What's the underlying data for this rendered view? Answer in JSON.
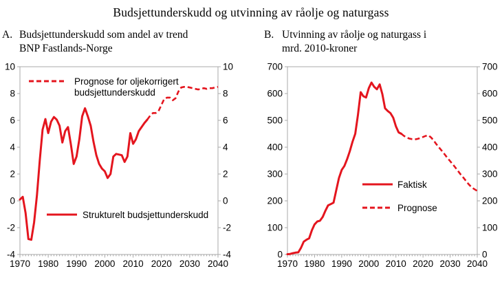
{
  "title": "Budsjettunderskudd og utvinning av råolje og naturgass",
  "colors": {
    "line_red": "#e4151e",
    "axis_gray": "#a8a8a8",
    "text_black": "#000000",
    "background": "#ffffff"
  },
  "chart_data": [
    {
      "type": "line",
      "panel_label": "A.",
      "title_lines": [
        "Budsjettunderskudd som andel av trend",
        "BNP Fastlands-Norge"
      ],
      "xlim": [
        1970,
        2040
      ],
      "ylim": [
        -4,
        10
      ],
      "xticks": [
        1970,
        1980,
        1990,
        2000,
        2010,
        2020,
        2030,
        2040
      ],
      "yticks": [
        -4,
        -2,
        0,
        2,
        4,
        6,
        8,
        10
      ],
      "ytick_labels_both_sides": true,
      "minor_xticks": "yearly",
      "grid": false,
      "legend_position": "inside",
      "series": [
        {
          "name": "Strukturelt budsjettunderskudd",
          "style": "solid",
          "points": [
            [
              1970,
              0.1
            ],
            [
              1971,
              0.3
            ],
            [
              1972,
              -0.9
            ],
            [
              1973,
              -2.85
            ],
            [
              1974,
              -2.9
            ],
            [
              1975,
              -1.6
            ],
            [
              1976,
              0.4
            ],
            [
              1977,
              3.0
            ],
            [
              1978,
              5.3
            ],
            [
              1979,
              6.1
            ],
            [
              1980,
              5.05
            ],
            [
              1981,
              5.9
            ],
            [
              1982,
              6.25
            ],
            [
              1983,
              6.05
            ],
            [
              1984,
              5.6
            ],
            [
              1985,
              4.35
            ],
            [
              1986,
              5.2
            ],
            [
              1987,
              5.5
            ],
            [
              1988,
              4.2
            ],
            [
              1989,
              2.75
            ],
            [
              1990,
              3.3
            ],
            [
              1991,
              4.6
            ],
            [
              1992,
              6.3
            ],
            [
              1993,
              6.9
            ],
            [
              1994,
              6.3
            ],
            [
              1995,
              5.6
            ],
            [
              1996,
              4.4
            ],
            [
              1997,
              3.4
            ],
            [
              1998,
              2.75
            ],
            [
              1999,
              2.4
            ],
            [
              2000,
              2.2
            ],
            [
              2001,
              1.7
            ],
            [
              2002,
              2.0
            ],
            [
              2003,
              3.3
            ],
            [
              2004,
              3.5
            ],
            [
              2005,
              3.45
            ],
            [
              2006,
              3.4
            ],
            [
              2007,
              2.9
            ],
            [
              2008,
              3.3
            ],
            [
              2009,
              5.05
            ],
            [
              2010,
              4.25
            ],
            [
              2011,
              4.6
            ],
            [
              2012,
              5.2
            ],
            [
              2013,
              5.5
            ],
            [
              2014,
              5.8
            ],
            [
              2015,
              6.05
            ]
          ]
        },
        {
          "name": "Prognose for oljekorrigert budsjettunderskudd",
          "style": "dashed",
          "points": [
            [
              2015,
              6.05
            ],
            [
              2016,
              6.35
            ],
            [
              2017,
              6.55
            ],
            [
              2018,
              6.55
            ],
            [
              2019,
              6.7
            ],
            [
              2020,
              7.15
            ],
            [
              2021,
              7.6
            ],
            [
              2022,
              7.7
            ],
            [
              2023,
              7.7
            ],
            [
              2024,
              7.5
            ],
            [
              2025,
              7.65
            ],
            [
              2026,
              8.15
            ],
            [
              2027,
              8.45
            ],
            [
              2028,
              8.5
            ],
            [
              2029,
              8.5
            ],
            [
              2030,
              8.45
            ],
            [
              2031,
              8.4
            ],
            [
              2032,
              8.35
            ],
            [
              2033,
              8.3
            ],
            [
              2034,
              8.35
            ],
            [
              2035,
              8.4
            ],
            [
              2036,
              8.35
            ],
            [
              2037,
              8.4
            ],
            [
              2038,
              8.4
            ],
            [
              2039,
              8.45
            ],
            [
              2040,
              8.5
            ]
          ]
        }
      ],
      "legend": [
        {
          "style": "dashed",
          "lines": [
            "Prognose for oljekorrigert",
            "budsjettunderskudd"
          ]
        },
        {
          "style": "solid",
          "lines": [
            "Strukturelt budsjettunderskudd"
          ]
        }
      ]
    },
    {
      "type": "line",
      "panel_label": "B.",
      "title_lines": [
        "Utvinning av råolje og naturgass i",
        "mrd. 2010-kroner"
      ],
      "xlim": [
        1970,
        2040
      ],
      "ylim": [
        0,
        700
      ],
      "xticks": [
        1970,
        1980,
        1990,
        2000,
        2010,
        2020,
        2030,
        2040
      ],
      "yticks": [
        0,
        100,
        200,
        300,
        400,
        500,
        600,
        700
      ],
      "ytick_labels_both_sides": true,
      "minor_xticks": "yearly",
      "grid": false,
      "legend_position": "inside",
      "series": [
        {
          "name": "Faktisk",
          "style": "solid",
          "points": [
            [
              1970,
              1
            ],
            [
              1971,
              2
            ],
            [
              1972,
              5
            ],
            [
              1973,
              7
            ],
            [
              1974,
              8
            ],
            [
              1975,
              25
            ],
            [
              1976,
              48
            ],
            [
              1977,
              55
            ],
            [
              1978,
              60
            ],
            [
              1979,
              90
            ],
            [
              1980,
              112
            ],
            [
              1981,
              123
            ],
            [
              1982,
              126
            ],
            [
              1983,
              140
            ],
            [
              1984,
              163
            ],
            [
              1985,
              183
            ],
            [
              1986,
              188
            ],
            [
              1987,
              193
            ],
            [
              1988,
              240
            ],
            [
              1989,
              285
            ],
            [
              1990,
              315
            ],
            [
              1991,
              330
            ],
            [
              1992,
              355
            ],
            [
              1993,
              385
            ],
            [
              1994,
              420
            ],
            [
              1995,
              450
            ],
            [
              1996,
              520
            ],
            [
              1997,
              605
            ],
            [
              1998,
              590
            ],
            [
              1999,
              585
            ],
            [
              2000,
              620
            ],
            [
              2001,
              641
            ],
            [
              2002,
              625
            ],
            [
              2003,
              616
            ],
            [
              2004,
              634
            ],
            [
              2005,
              598
            ],
            [
              2006,
              545
            ],
            [
              2007,
              535
            ],
            [
              2008,
              527
            ],
            [
              2009,
              510
            ],
            [
              2010,
              478
            ],
            [
              2011,
              455
            ],
            [
              2012,
              450
            ]
          ]
        },
        {
          "name": "Prognose",
          "style": "dashed",
          "points": [
            [
              2012,
              450
            ],
            [
              2013,
              442
            ],
            [
              2014,
              436
            ],
            [
              2015,
              432
            ],
            [
              2016,
              430
            ],
            [
              2017,
              429
            ],
            [
              2018,
              431
            ],
            [
              2019,
              434
            ],
            [
              2020,
              438
            ],
            [
              2021,
              442
            ],
            [
              2022,
              444
            ],
            [
              2023,
              436
            ],
            [
              2024,
              424
            ],
            [
              2025,
              410
            ],
            [
              2026,
              398
            ],
            [
              2027,
              386
            ],
            [
              2028,
              373
            ],
            [
              2029,
              360
            ],
            [
              2030,
              348
            ],
            [
              2031,
              336
            ],
            [
              2032,
              323
            ],
            [
              2033,
              310
            ],
            [
              2034,
              297
            ],
            [
              2035,
              285
            ],
            [
              2036,
              272
            ],
            [
              2037,
              260
            ],
            [
              2038,
              250
            ],
            [
              2039,
              243
            ],
            [
              2040,
              237
            ]
          ]
        }
      ],
      "legend": [
        {
          "style": "solid",
          "lines": [
            "Faktisk"
          ]
        },
        {
          "style": "dashed",
          "lines": [
            "Prognose"
          ]
        }
      ]
    }
  ]
}
